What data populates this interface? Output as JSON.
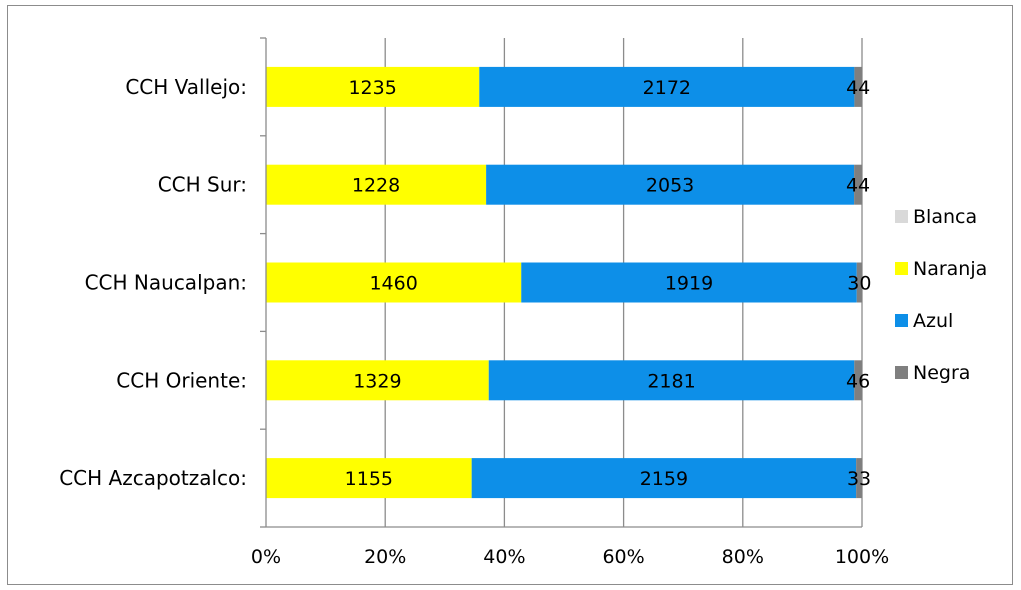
{
  "chart_data": {
    "type": "bar",
    "orientation": "horizontal",
    "stacked": "percent",
    "categories": [
      "CCH Vallejo:",
      "CCH Sur:",
      "CCH Naucalpan:",
      "CCH Oriente:",
      "CCH Azcapotzalco:"
    ],
    "series": [
      {
        "name": "Blanca",
        "color": "#d9d9d9",
        "values": [
          0,
          0,
          0,
          0,
          0
        ],
        "labels": [
          "",
          "",
          "",
          "",
          ""
        ]
      },
      {
        "name": "Naranja",
        "color": "#ffff00",
        "values": [
          1235,
          1228,
          1460,
          1329,
          1155
        ],
        "labels": [
          "1235",
          "1228",
          "1460",
          "1329",
          "1155"
        ]
      },
      {
        "name": "Azul",
        "color": "#0d8fe8",
        "values": [
          2172,
          2053,
          1919,
          2181,
          2159
        ],
        "labels": [
          "2172",
          "2053",
          "1919",
          "2181",
          "2159"
        ]
      },
      {
        "name": "Negra",
        "color": "#7f7f7f",
        "values": [
          44,
          44,
          30,
          46,
          33
        ],
        "labels": [
          "44",
          "44",
          "30",
          "46",
          "33"
        ]
      }
    ],
    "x_ticks": [
      "0%",
      "20%",
      "40%",
      "60%",
      "80%",
      "100%"
    ],
    "xlim": [
      0,
      100
    ],
    "grid": "vertical",
    "legend_position": "right",
    "title": "",
    "xlabel": "",
    "ylabel": ""
  }
}
